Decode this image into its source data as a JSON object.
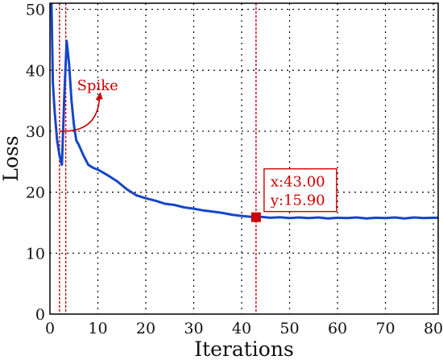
{
  "chart_data": {
    "type": "line",
    "xlabel": "Iterations",
    "ylabel": "Loss",
    "xlim": [
      0,
      81
    ],
    "ylim": [
      0,
      51
    ],
    "xticks": [
      0,
      10,
      20,
      30,
      40,
      50,
      60,
      70,
      80
    ],
    "yticks": [
      0,
      10,
      20,
      30,
      40,
      50
    ],
    "grid": true,
    "series": [
      {
        "color": "#1446c8",
        "x": [
          0.3,
          0.6,
          1.0,
          1.5,
          2.0,
          2.5,
          3.0,
          3.5,
          4.0,
          4.5,
          5.0,
          5.5,
          6.0,
          7.0,
          8.0,
          9.0,
          10.0,
          12.0,
          14.0,
          16.0,
          18.0,
          20.0,
          22.0,
          24.0,
          26.0,
          28.0,
          30.0,
          32.0,
          34.0,
          36.0,
          38.0,
          40.0,
          42.0,
          43.0,
          44.0,
          46.0,
          48.0,
          50.0,
          52.0,
          54.0,
          56.0,
          58.0,
          60.0,
          62.0,
          64.0,
          66.0,
          68.0,
          70.0,
          72.0,
          74.0,
          76.0,
          78.0,
          80.0,
          81.0
        ],
        "y": [
          52.0,
          38.0,
          33.0,
          28.5,
          26.0,
          24.5,
          36.0,
          44.8,
          41.0,
          35.0,
          31.0,
          28.5,
          27.8,
          26.0,
          24.5,
          24.0,
          23.7,
          22.8,
          21.8,
          20.5,
          19.5,
          19.0,
          18.6,
          18.1,
          17.9,
          17.5,
          17.3,
          17.0,
          16.8,
          16.6,
          16.3,
          16.1,
          15.95,
          15.9,
          15.95,
          15.8,
          15.9,
          15.75,
          15.85,
          15.75,
          15.85,
          15.7,
          15.8,
          15.75,
          15.85,
          15.7,
          15.8,
          15.75,
          15.85,
          15.7,
          15.85,
          15.75,
          15.8,
          15.8
        ]
      }
    ],
    "vlines": [
      {
        "x": 2.0,
        "color": "#cc0000"
      },
      {
        "x": 3.3,
        "color": "#cc0000"
      },
      {
        "x": 43.0,
        "color": "#cc0000"
      }
    ],
    "annotations": [
      {
        "text": "Spike",
        "color": "#cc0000",
        "anchor_x": 2.0,
        "anchor_y": 30.0,
        "text_x": 8.0,
        "text_y": 37.5
      },
      {
        "marker": "square",
        "color": "#cc0000",
        "x": 43.0,
        "y": 15.9,
        "lines": [
          "x:43.00",
          "y:15.90"
        ]
      }
    ]
  }
}
